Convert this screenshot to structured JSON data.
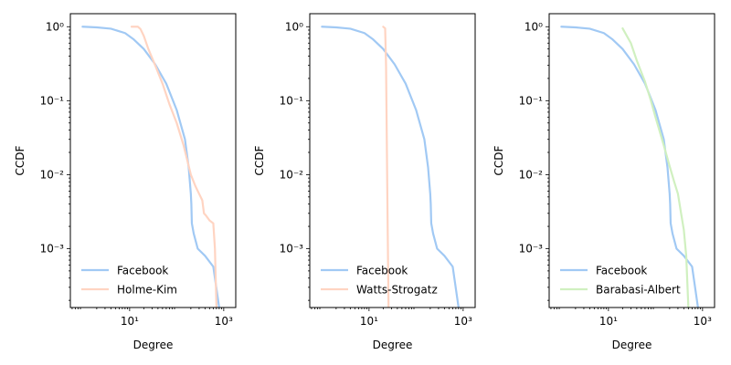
{
  "chart_data": [
    {
      "type": "line",
      "xscale": "log",
      "yscale": "log",
      "xlim": [
        0.55,
        1800
      ],
      "ylim": [
        0.00016,
        1.5
      ],
      "xticks": [
        {
          "value": 10,
          "label": "10¹"
        },
        {
          "value": 1000,
          "label": "10³"
        }
      ],
      "yticks": [
        {
          "value": 1,
          "label": "10⁰"
        },
        {
          "value": 0.1,
          "label": "10⁻¹"
        },
        {
          "value": 0.01,
          "label": "10⁻²"
        },
        {
          "value": 0.001,
          "label": "10⁻³"
        }
      ],
      "xlabel": "Degree",
      "ylabel": "CCDF",
      "legend_position": "bottom-left",
      "series": [
        {
          "name": "Facebook",
          "color": "#a1c9f4",
          "x": [
            1,
            2,
            4,
            8,
            12,
            20,
            35,
            60,
            100,
            150,
            180,
            200,
            205,
            210,
            230,
            280,
            400,
            600,
            800
          ],
          "y": [
            1.0,
            0.98,
            0.94,
            0.82,
            0.68,
            0.5,
            0.31,
            0.17,
            0.075,
            0.03,
            0.0125,
            0.0055,
            0.004,
            0.0022,
            0.0016,
            0.001,
            0.0008,
            0.00057,
            0.00016
          ]
        },
        {
          "name": "Holme-Kim",
          "color": "#ffd4c2",
          "x": [
            11,
            15,
            17,
            20,
            25,
            35,
            50,
            70,
            100,
            140,
            200,
            250,
            300,
            350,
            380,
            420,
            500,
            600,
            650,
            700
          ],
          "y": [
            1.0,
            1.0,
            0.93,
            0.75,
            0.5,
            0.3,
            0.17,
            0.09,
            0.05,
            0.025,
            0.01,
            0.007,
            0.0055,
            0.0045,
            0.003,
            0.0028,
            0.0024,
            0.0022,
            0.001,
            0.00016
          ]
        }
      ]
    },
    {
      "type": "line",
      "xscale": "log",
      "yscale": "log",
      "xlim": [
        0.55,
        1800
      ],
      "ylim": [
        0.00016,
        1.5
      ],
      "xticks": [
        {
          "value": 10,
          "label": "10¹"
        },
        {
          "value": 1000,
          "label": "10³"
        }
      ],
      "yticks": [
        {
          "value": 1,
          "label": "10⁰"
        },
        {
          "value": 0.1,
          "label": "10⁻¹"
        },
        {
          "value": 0.01,
          "label": "10⁻²"
        },
        {
          "value": 0.001,
          "label": "10⁻³"
        }
      ],
      "xlabel": "Degree",
      "ylabel": "CCDF",
      "legend_position": "bottom-left",
      "series": [
        {
          "name": "Facebook",
          "color": "#a1c9f4",
          "x": [
            1,
            2,
            4,
            8,
            12,
            20,
            35,
            60,
            100,
            150,
            180,
            200,
            205,
            210,
            230,
            280,
            400,
            600,
            800
          ],
          "y": [
            1.0,
            0.98,
            0.94,
            0.82,
            0.68,
            0.5,
            0.31,
            0.17,
            0.075,
            0.03,
            0.0125,
            0.0055,
            0.004,
            0.0022,
            0.0016,
            0.001,
            0.0008,
            0.00057,
            0.00016
          ]
        },
        {
          "name": "Watts-Strogatz",
          "color": "#ffd4c2",
          "x": [
            20,
            22,
            23,
            24,
            25,
            26
          ],
          "y": [
            1.0,
            0.95,
            0.3,
            0.02,
            0.0015,
            0.00016
          ]
        }
      ]
    },
    {
      "type": "line",
      "xscale": "log",
      "yscale": "log",
      "xlim": [
        0.55,
        1800
      ],
      "ylim": [
        0.00016,
        1.5
      ],
      "xticks": [
        {
          "value": 10,
          "label": "10¹"
        },
        {
          "value": 1000,
          "label": "10³"
        }
      ],
      "yticks": [
        {
          "value": 1,
          "label": "10⁰"
        },
        {
          "value": 0.1,
          "label": "10⁻¹"
        },
        {
          "value": 0.01,
          "label": "10⁻²"
        },
        {
          "value": 0.001,
          "label": "10⁻³"
        }
      ],
      "xlabel": "Degree",
      "ylabel": "CCDF",
      "legend_position": "bottom-left",
      "series": [
        {
          "name": "Facebook",
          "color": "#a1c9f4",
          "x": [
            1,
            2,
            4,
            8,
            12,
            20,
            35,
            60,
            100,
            150,
            180,
            200,
            205,
            210,
            230,
            280,
            400,
            600,
            800
          ],
          "y": [
            1.0,
            0.98,
            0.94,
            0.82,
            0.68,
            0.5,
            0.31,
            0.17,
            0.075,
            0.03,
            0.0125,
            0.0055,
            0.004,
            0.0022,
            0.0016,
            0.001,
            0.0008,
            0.00057,
            0.00016
          ]
        },
        {
          "name": "Barabasi-Albert",
          "color": "#d0f0c0",
          "x": [
            20,
            30,
            40,
            60,
            80,
            100,
            150,
            200,
            250,
            300,
            350,
            400,
            450,
            500
          ],
          "y": [
            0.95,
            0.6,
            0.35,
            0.18,
            0.1,
            0.06,
            0.025,
            0.013,
            0.008,
            0.0055,
            0.003,
            0.0018,
            0.0008,
            0.00016
          ]
        }
      ]
    }
  ]
}
